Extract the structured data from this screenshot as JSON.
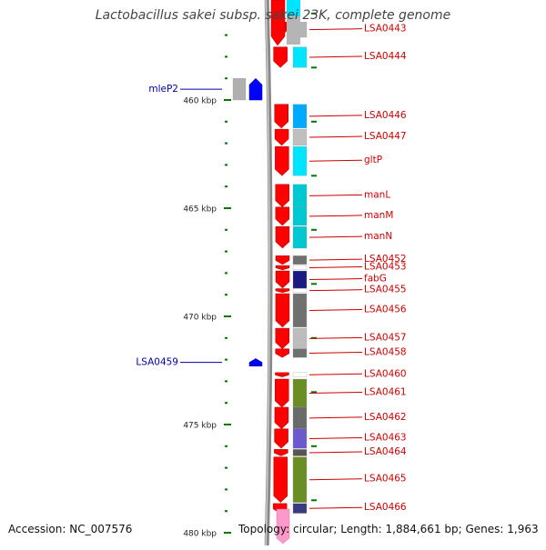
{
  "title": "Lactobacillus sakei subsp. sakei 23K, complete genome",
  "footer": {
    "accession": "Accession: NC_007576",
    "summary": "Topology: circular; Length: 1,884,661 bp; Genes: 1,963"
  },
  "axis": {
    "unit": "kbp",
    "ticks": [
      {
        "value": 460,
        "label": "460 kbp"
      },
      {
        "value": 465,
        "label": "465 kbp"
      },
      {
        "value": 470,
        "label": "470 kbp"
      },
      {
        "value": 475,
        "label": "475 kbp"
      },
      {
        "value": 480,
        "label": "480 kbp"
      }
    ]
  },
  "colors": {
    "forward_strand": "#ff0000",
    "reverse_strand": "#0000ff",
    "forward_label": "#cc0000",
    "reverse_label": "#0000aa",
    "tick": "#007700",
    "backbone": "#888888"
  },
  "genes": [
    {
      "name": "LSA0443",
      "strand": "forward",
      "start": 456.4,
      "end": 457.1,
      "cog": "#b5b5b5"
    },
    {
      "name": "LSA0444",
      "strand": "forward",
      "start": 457.55,
      "end": 458.5,
      "cog": "#00e5ff"
    },
    {
      "name": "mleP2",
      "strand": "reverse",
      "start": 459.0,
      "end": 460.0,
      "cog": "#b0b0b0"
    },
    {
      "name": "LSA0446",
      "strand": "forward",
      "start": 460.2,
      "end": 461.3,
      "cog": "#00aaff"
    },
    {
      "name": "LSA0447",
      "strand": "forward",
      "start": 461.35,
      "end": 462.1,
      "cog": "#bfbfbf"
    },
    {
      "name": "gltP",
      "strand": "forward",
      "start": 462.15,
      "end": 463.5,
      "cog": "#00e5ff"
    },
    {
      "name": "manL",
      "strand": "forward",
      "start": 463.9,
      "end": 464.95,
      "cog": "#00c8d0"
    },
    {
      "name": "manM",
      "strand": "forward",
      "start": 464.95,
      "end": 465.8,
      "cog": "#00c8d0"
    },
    {
      "name": "manN",
      "strand": "forward",
      "start": 465.85,
      "end": 466.85,
      "cog": "#00c8d0"
    },
    {
      "name": "LSA0452",
      "strand": "forward",
      "start": 467.2,
      "end": 467.6,
      "cog": "#707070"
    },
    {
      "name": "LSA0453",
      "strand": "forward",
      "start": 467.65,
      "end": 467.85,
      "cog": "#ffffff"
    },
    {
      "name": "fabG",
      "strand": "forward",
      "start": 467.9,
      "end": 468.7,
      "cog": "#1a1a80"
    },
    {
      "name": "LSA0455",
      "strand": "forward",
      "start": 468.72,
      "end": 468.9,
      "cog": "#ffffff"
    },
    {
      "name": "LSA0456",
      "strand": "forward",
      "start": 468.95,
      "end": 470.5,
      "cog": "#707070"
    },
    {
      "name": "LSA0457",
      "strand": "forward",
      "start": 470.55,
      "end": 471.5,
      "cog": "#bcbcbc"
    },
    {
      "name": "LSA0458",
      "strand": "forward",
      "start": 471.5,
      "end": 471.9,
      "cog": "#707070"
    },
    {
      "name": "LSA0459",
      "strand": "reverse",
      "start": 471.95,
      "end": 472.3,
      "cog": "#ffffff"
    },
    {
      "name": "LSA0460",
      "strand": "forward",
      "start": 472.6,
      "end": 472.8,
      "cog": "#ffffff"
    },
    {
      "name": "LSA0461",
      "strand": "forward",
      "start": 472.9,
      "end": 474.2,
      "cog": "#6b8e23"
    },
    {
      "name": "LSA0462",
      "strand": "forward",
      "start": 474.2,
      "end": 475.2,
      "cog": "#6a6a6a"
    },
    {
      "name": "LSA0463",
      "strand": "forward",
      "start": 475.2,
      "end": 476.1,
      "cog": "#6a5acd"
    },
    {
      "name": "LSA0464",
      "strand": "forward",
      "start": 476.15,
      "end": 476.45,
      "cog": "#555555"
    },
    {
      "name": "LSA0465",
      "strand": "forward",
      "start": 476.5,
      "end": 478.6,
      "cog": "#6b8e23"
    },
    {
      "name": "LSA0466",
      "strand": "forward",
      "start": 478.65,
      "end": 479.1,
      "cog": "#3a3a80"
    }
  ]
}
